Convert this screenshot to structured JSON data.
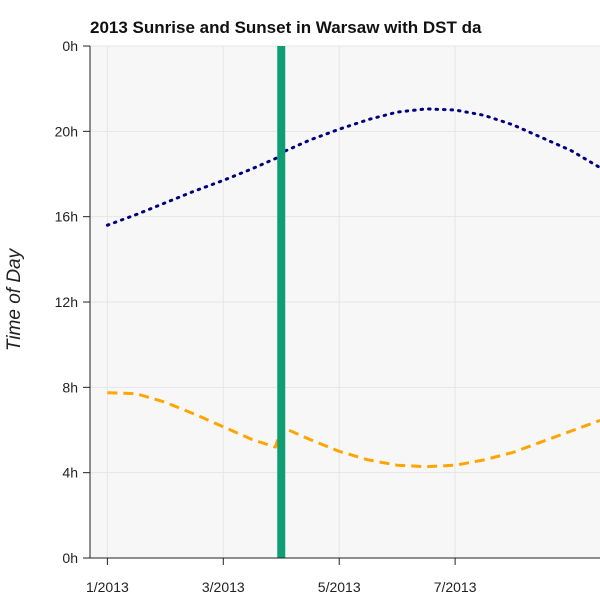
{
  "chart_data": {
    "type": "line",
    "title": "2013 Sunrise and Sunset in Warsaw with DST da",
    "xlabel": "",
    "ylabel": "Time of Day",
    "x_unit": "month of 2013",
    "xlim": [
      0.7,
      9.5
    ],
    "ylim": [
      0,
      24
    ],
    "x_tick_values": [
      1,
      3,
      5,
      7
    ],
    "x_tick_labels": [
      "1/2013",
      "3/2013",
      "5/2013",
      "7/2013"
    ],
    "y_tick_values": [
      0,
      4,
      8,
      12,
      16,
      20,
      24
    ],
    "y_tick_labels": [
      "0h",
      "4h",
      "8h",
      "12h",
      "16h",
      "20h",
      "0h"
    ],
    "grid": true,
    "legend": "none",
    "dst_marker": {
      "x": 4.0,
      "color": "#0f9d73"
    },
    "series": [
      {
        "style": "dotted",
        "color": "#000080",
        "points": [
          [
            1.0,
            15.6
          ],
          [
            1.5,
            16.1
          ],
          [
            2.0,
            16.65
          ],
          [
            2.5,
            17.2
          ],
          [
            3.0,
            17.7
          ],
          [
            3.5,
            18.25
          ],
          [
            4.0,
            18.85
          ],
          [
            4.0,
            19.0
          ],
          [
            4.5,
            19.6
          ],
          [
            5.0,
            20.1
          ],
          [
            5.5,
            20.55
          ],
          [
            6.0,
            20.9
          ],
          [
            6.5,
            21.05
          ],
          [
            7.0,
            21.0
          ],
          [
            7.5,
            20.75
          ],
          [
            8.0,
            20.3
          ],
          [
            8.5,
            19.7
          ],
          [
            9.0,
            19.1
          ],
          [
            9.5,
            18.3
          ]
        ]
      },
      {
        "style": "dashed",
        "color": "#ffa500",
        "points": [
          [
            1.0,
            7.75
          ],
          [
            1.5,
            7.7
          ],
          [
            2.0,
            7.3
          ],
          [
            2.5,
            6.75
          ],
          [
            3.0,
            6.15
          ],
          [
            3.5,
            5.55
          ],
          [
            3.9,
            5.2
          ],
          [
            4.0,
            6.15
          ],
          [
            4.5,
            5.55
          ],
          [
            5.0,
            5.0
          ],
          [
            5.5,
            4.6
          ],
          [
            6.0,
            4.35
          ],
          [
            6.5,
            4.28
          ],
          [
            7.0,
            4.35
          ],
          [
            7.5,
            4.6
          ],
          [
            8.0,
            4.95
          ],
          [
            8.5,
            5.45
          ],
          [
            9.0,
            5.95
          ],
          [
            9.5,
            6.45
          ]
        ]
      }
    ],
    "colors": {
      "plot_background": "#f7f7f7",
      "grid": "#e6e6e6",
      "axis": "#222222"
    }
  }
}
